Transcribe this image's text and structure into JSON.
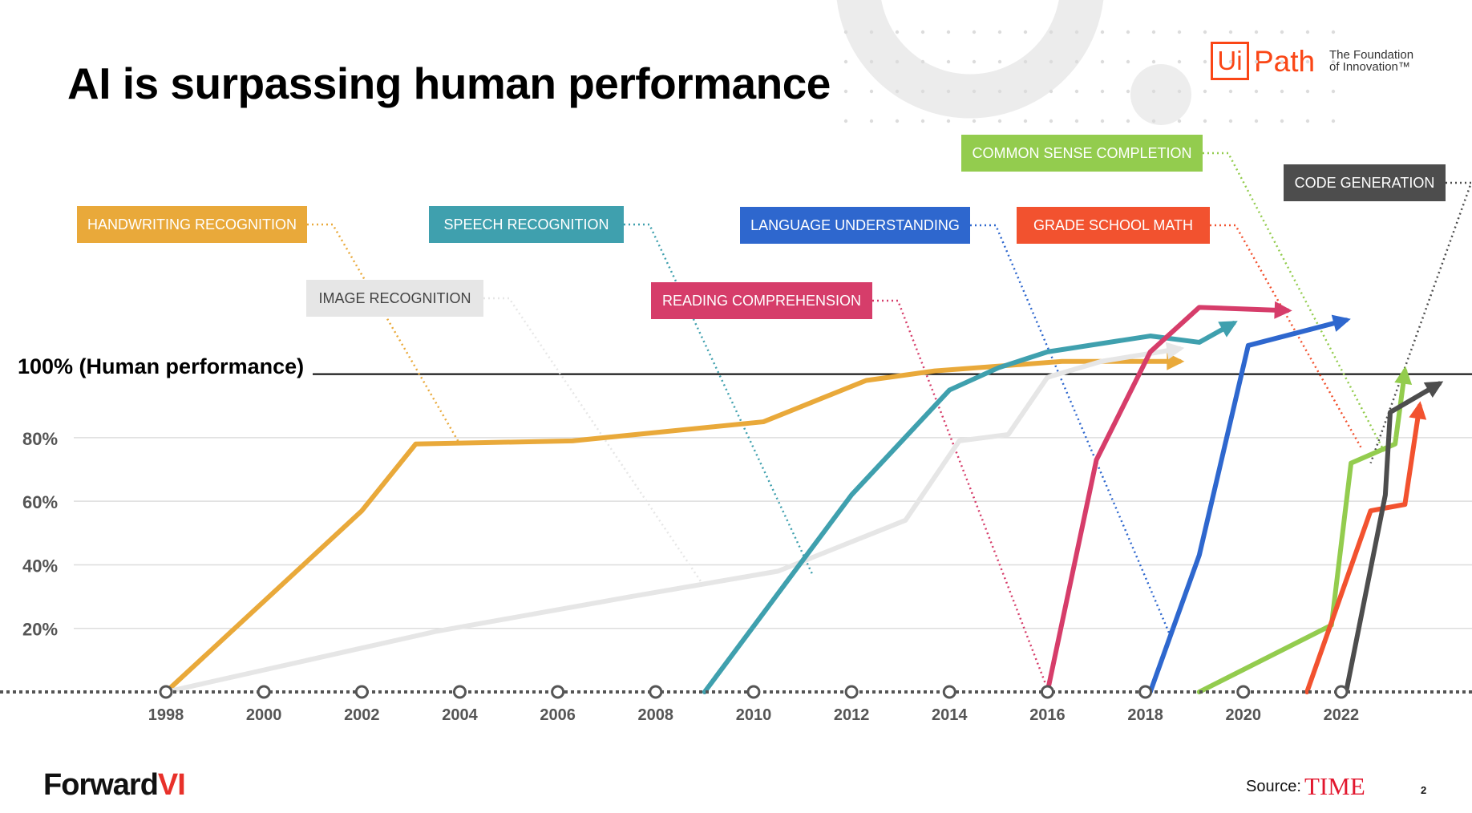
{
  "slide": {
    "title": "AI is surpassing human performance",
    "human_label": "100% (Human performance)",
    "brand_prefix": "Forward",
    "brand_suffix": "VI",
    "source_label": "Source:",
    "source_name": "TIME",
    "page_number": "2",
    "logo": {
      "box": "Ui",
      "word": "Path",
      "tagline": "The Foundation\nof Innovation™"
    }
  },
  "chart_data": {
    "type": "line",
    "title": "",
    "xlabel": "",
    "ylabel": "",
    "x_ticks": [
      1998,
      2000,
      2002,
      2004,
      2006,
      2008,
      2010,
      2012,
      2014,
      2016,
      2018,
      2020,
      2022
    ],
    "x_tick_labels": [
      "1998",
      "2000",
      "2002",
      "2004",
      "2006",
      "2008",
      "2010",
      "2012",
      "2014",
      "2016",
      "2018",
      "2020",
      "2022"
    ],
    "y_ticks": [
      20,
      40,
      60,
      80
    ],
    "y_tick_labels": [
      "20%",
      "40%",
      "60%",
      "80%"
    ],
    "human_performance": 100,
    "grid": true,
    "series": [
      {
        "name": "HANDWRITING RECOGNITION",
        "color": "#e9a93a",
        "text_color": "#ffffff",
        "points": [
          [
            1998,
            0
          ],
          [
            2002,
            57
          ],
          [
            2003.1,
            78
          ],
          [
            2006.3,
            79
          ],
          [
            2010.2,
            85
          ],
          [
            2012.3,
            98
          ],
          [
            2013.7,
            101
          ],
          [
            2016.3,
            104
          ],
          [
            2018.7,
            104
          ]
        ]
      },
      {
        "name": "IMAGE RECOGNITION",
        "color": "#e6e6e6",
        "text_color": "#444444",
        "points": [
          [
            1998,
            0
          ],
          [
            2003.5,
            19
          ],
          [
            2007.5,
            30
          ],
          [
            2010.5,
            38
          ],
          [
            2013.1,
            54
          ],
          [
            2014.2,
            79
          ],
          [
            2015.2,
            81
          ],
          [
            2016,
            99
          ],
          [
            2017.1,
            104
          ],
          [
            2018.7,
            108
          ]
        ]
      },
      {
        "name": "SPEECH RECOGNITION",
        "color": "#3fa0ae",
        "text_color": "#ffffff",
        "points": [
          [
            2009,
            0
          ],
          [
            2012,
            62
          ],
          [
            2014,
            95
          ],
          [
            2015,
            102
          ],
          [
            2016,
            107
          ],
          [
            2018.1,
            112
          ],
          [
            2019.1,
            110
          ],
          [
            2019.8,
            116
          ]
        ]
      },
      {
        "name": "READING COMPREHENSION",
        "color": "#d63d6a",
        "text_color": "#ffffff",
        "points": [
          [
            2016,
            0
          ],
          [
            2017,
            73
          ],
          [
            2018.1,
            107
          ],
          [
            2019.1,
            121
          ],
          [
            2020.9,
            120
          ]
        ]
      },
      {
        "name": "LANGUAGE UNDERSTANDING",
        "color": "#2e67ce",
        "text_color": "#ffffff",
        "points": [
          [
            2018.1,
            0
          ],
          [
            2019.1,
            43
          ],
          [
            2020.1,
            109
          ],
          [
            2022.1,
            117
          ]
        ]
      },
      {
        "name": "COMMON SENSE COMPLETION",
        "color": "#93cc4e",
        "text_color": "#ffffff",
        "points": [
          [
            2019.1,
            0
          ],
          [
            2021.8,
            21
          ],
          [
            2022.2,
            72
          ],
          [
            2023.1,
            78
          ],
          [
            2023.3,
            101
          ]
        ]
      },
      {
        "name": "GRADE SCHOOL MATH",
        "color": "#f2522f",
        "text_color": "#ffffff",
        "points": [
          [
            2021.3,
            0
          ],
          [
            2022.6,
            57
          ],
          [
            2023.3,
            59
          ],
          [
            2023.6,
            90
          ]
        ]
      },
      {
        "name": "CODE GENERATION",
        "color": "#4d4d4d",
        "text_color": "#ffffff",
        "points": [
          [
            2022.1,
            0
          ],
          [
            2022.9,
            62
          ],
          [
            2023,
            88
          ],
          [
            2024,
            97
          ]
        ]
      }
    ]
  }
}
